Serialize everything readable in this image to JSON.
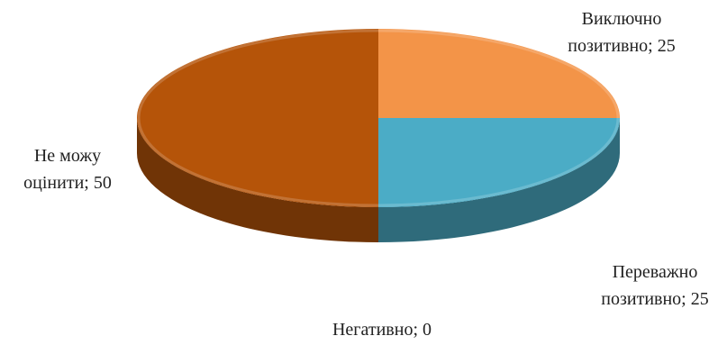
{
  "chart_data": {
    "type": "pie",
    "title": "",
    "slices": [
      {
        "label_lines": [
          "Виключно",
          "позитивно; 25"
        ],
        "category": "Виключно позитивно",
        "value": 25,
        "color": "#f39448"
      },
      {
        "label_lines": [
          "Переважно",
          "позитивно; 25"
        ],
        "category": "Переважно позитивно",
        "value": 25,
        "color": "#4bacc6"
      },
      {
        "label_lines": [
          "Негативно; 0"
        ],
        "category": "Негативно",
        "value": 0,
        "color": "#8a8a8a"
      },
      {
        "label_lines": [
          "Не можу",
          "оцінити; 50"
        ],
        "category": "Не можу оцінити",
        "value": 50,
        "color": "#b55409"
      }
    ],
    "legend": "none",
    "style": "3d"
  }
}
